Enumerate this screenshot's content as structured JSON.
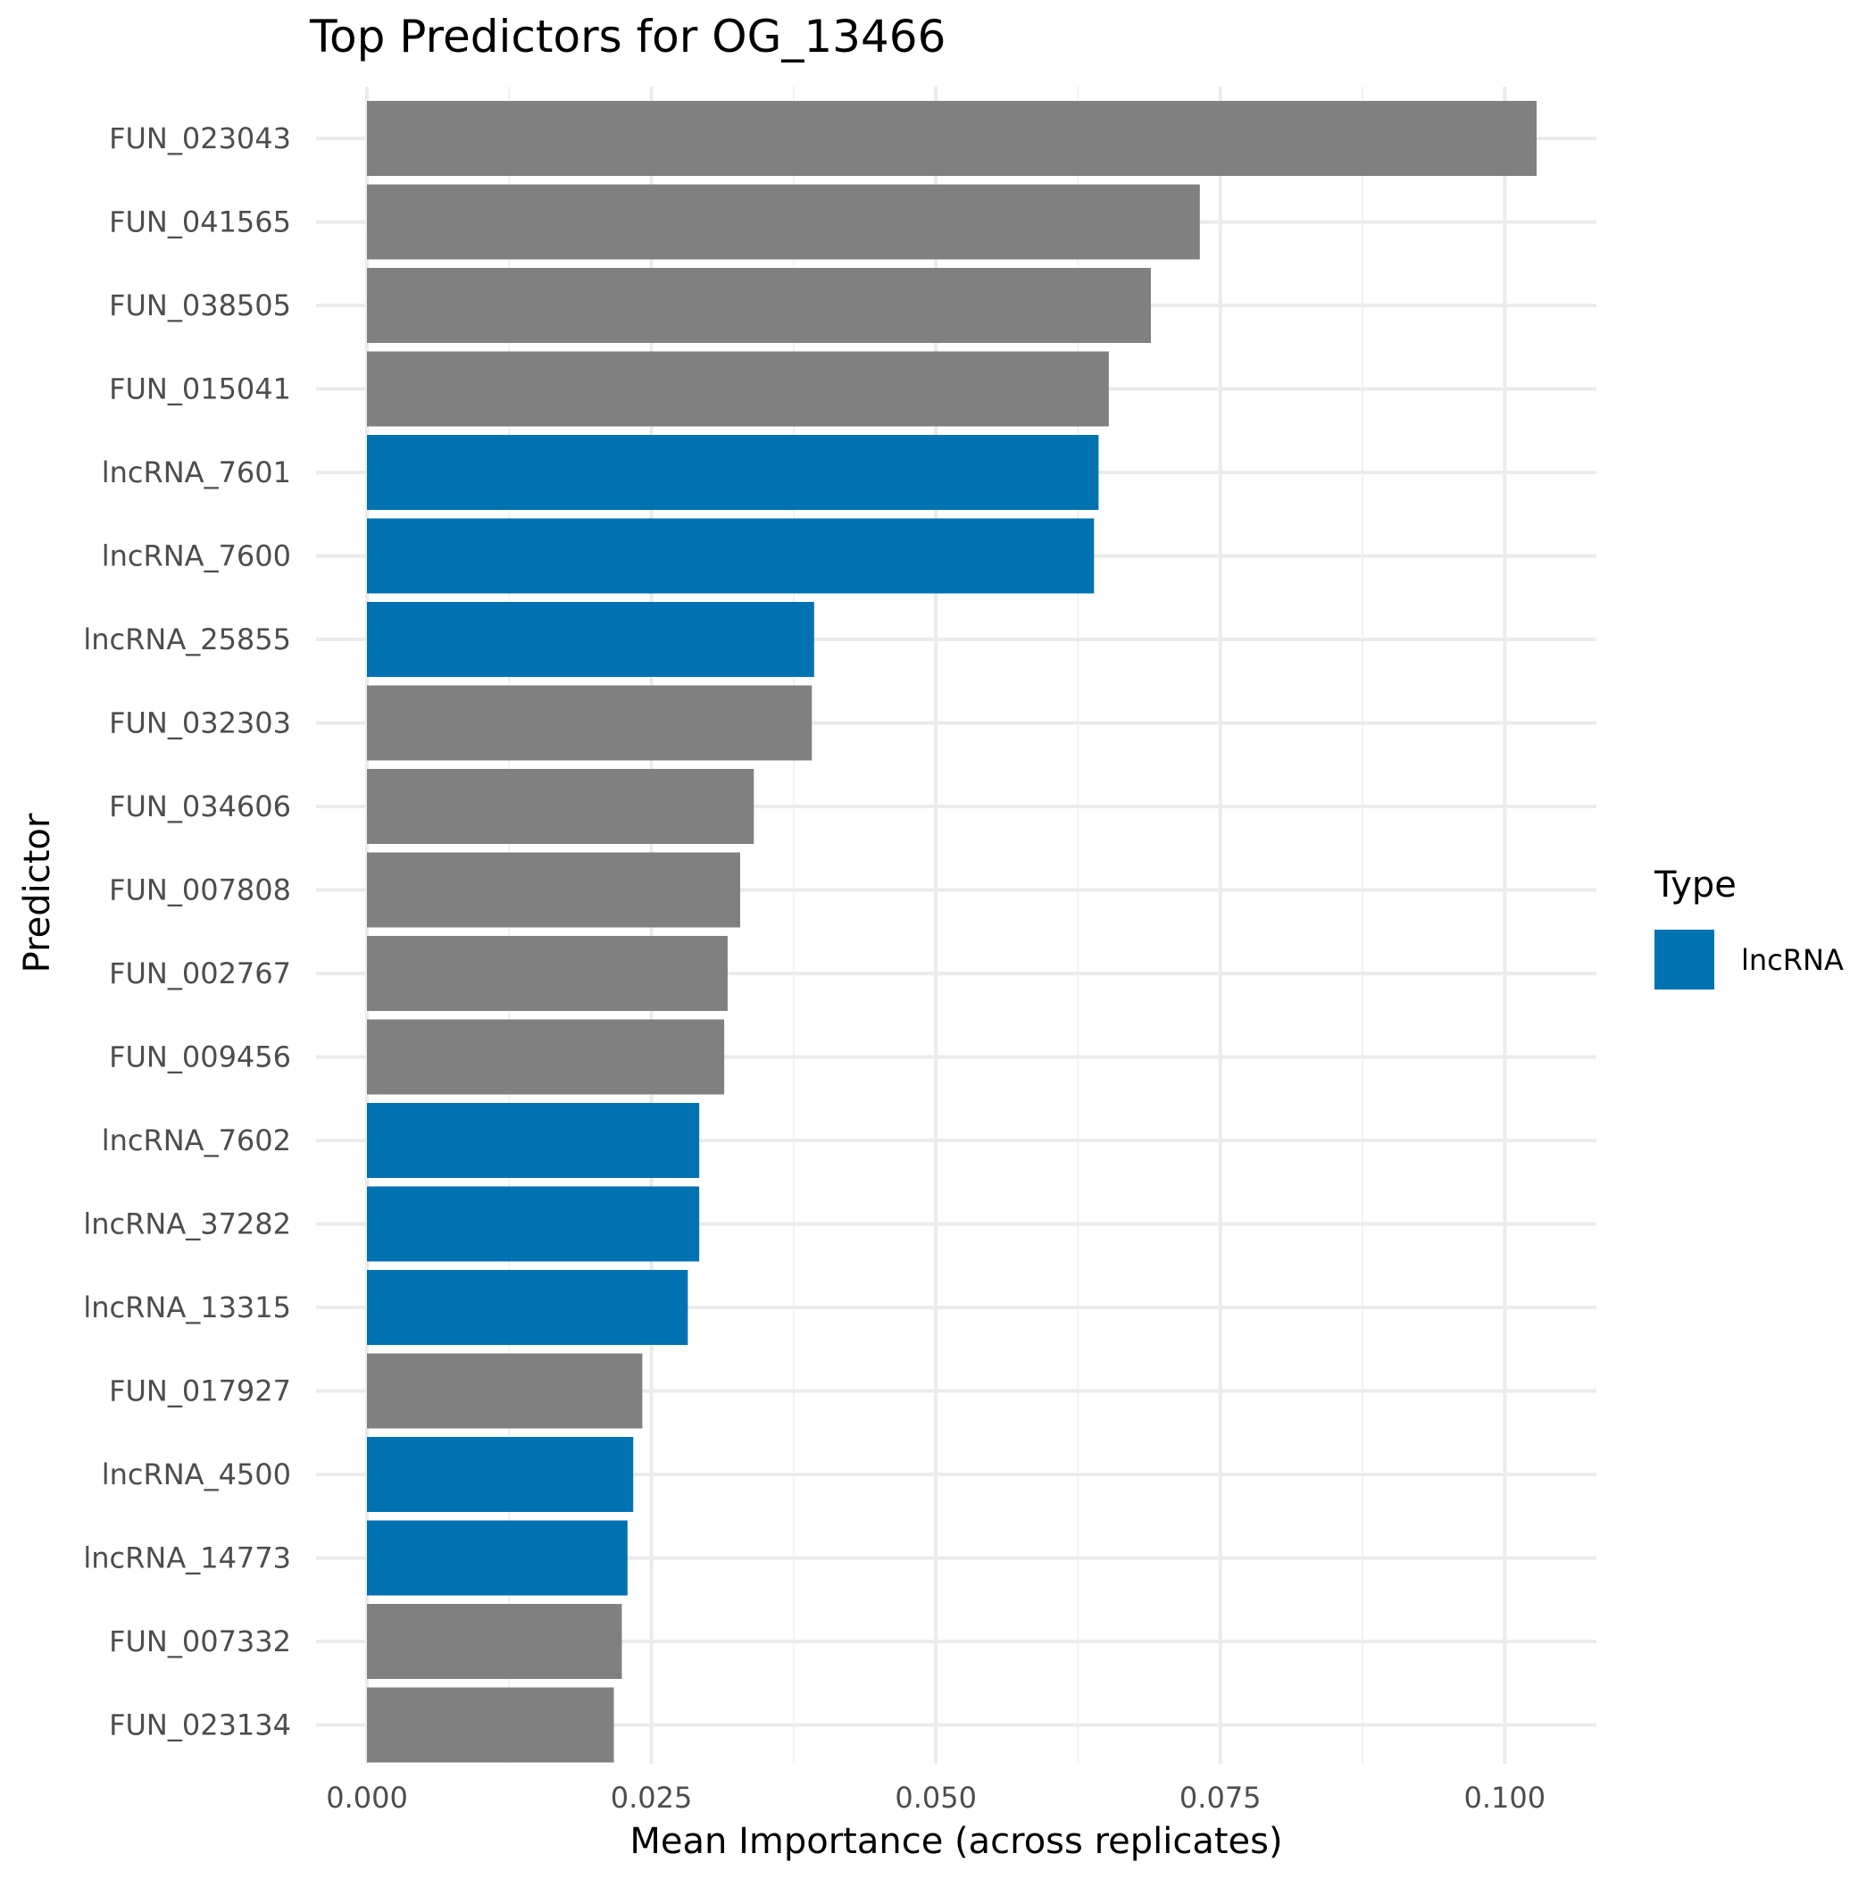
{
  "chart_data": {
    "type": "bar",
    "orientation": "horizontal",
    "title": "Top Predictors for OG_13466",
    "xlabel": "Mean Importance (across replicates)",
    "ylabel": "Predictor",
    "xlim": [
      0,
      0.1028
    ],
    "xticks": [
      0.0,
      0.025,
      0.05,
      0.075,
      0.1
    ],
    "xtick_labels": [
      "0.000",
      "0.025",
      "0.050",
      "0.075",
      "0.100"
    ],
    "grid": true,
    "legend": {
      "title": "Type",
      "position": "right",
      "entries": [
        {
          "label": "lncRNA",
          "color": "#0072B2"
        }
      ]
    },
    "colors": {
      "lncRNA": "#0072B2",
      "other": "#808080"
    },
    "categories": [
      "FUN_023043",
      "FUN_041565",
      "FUN_038505",
      "FUN_015041",
      "lncRNA_7601",
      "lncRNA_7600",
      "lncRNA_25855",
      "FUN_032303",
      "FUN_034606",
      "FUN_007808",
      "FUN_002767",
      "FUN_009456",
      "lncRNA_7602",
      "lncRNA_37282",
      "lncRNA_13315",
      "FUN_017927",
      "lncRNA_4500",
      "lncRNA_14773",
      "FUN_007332",
      "FUN_023134"
    ],
    "values": [
      0.1028,
      0.0732,
      0.0689,
      0.0652,
      0.0643,
      0.0639,
      0.0393,
      0.0391,
      0.034,
      0.0328,
      0.0317,
      0.0314,
      0.0292,
      0.0292,
      0.0282,
      0.0242,
      0.0234,
      0.0229,
      0.0224,
      0.0217
    ],
    "types": [
      "other",
      "other",
      "other",
      "other",
      "lncRNA",
      "lncRNA",
      "lncRNA",
      "other",
      "other",
      "other",
      "other",
      "other",
      "lncRNA",
      "lncRNA",
      "lncRNA",
      "other",
      "lncRNA",
      "lncRNA",
      "other",
      "other"
    ]
  }
}
